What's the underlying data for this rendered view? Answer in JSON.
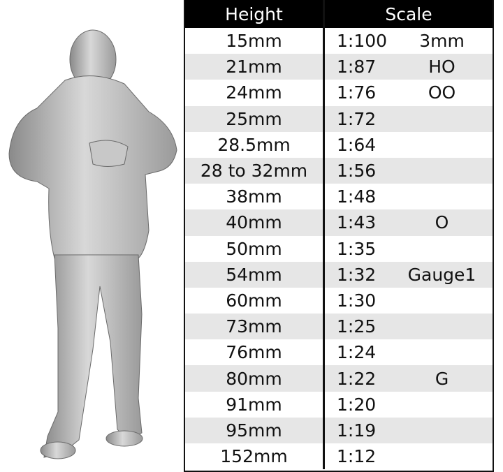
{
  "header": {
    "height_label": "Height",
    "scale_label": "Scale"
  },
  "rows": [
    {
      "height": "15mm",
      "ratio": "1:100",
      "gauge": "3mm"
    },
    {
      "height": "21mm",
      "ratio": "1:87",
      "gauge": "HO"
    },
    {
      "height": "24mm",
      "ratio": "1:76",
      "gauge": "OO"
    },
    {
      "height": "25mm",
      "ratio": "1:72",
      "gauge": ""
    },
    {
      "height": "28.5mm",
      "ratio": "1:64",
      "gauge": ""
    },
    {
      "height": "28 to 32mm",
      "ratio": "1:56",
      "gauge": ""
    },
    {
      "height": "38mm",
      "ratio": "1:48",
      "gauge": ""
    },
    {
      "height": "40mm",
      "ratio": "1:43",
      "gauge": "O"
    },
    {
      "height": "50mm",
      "ratio": "1:35",
      "gauge": ""
    },
    {
      "height": "54mm",
      "ratio": "1:32",
      "gauge": "Gauge1"
    },
    {
      "height": "60mm",
      "ratio": "1:30",
      "gauge": ""
    },
    {
      "height": "73mm",
      "ratio": "1:25",
      "gauge": ""
    },
    {
      "height": "76mm",
      "ratio": "1:24",
      "gauge": ""
    },
    {
      "height": "80mm",
      "ratio": "1:22",
      "gauge": "G"
    },
    {
      "height": "91mm",
      "ratio": "1:20",
      "gauge": ""
    },
    {
      "height": "95mm",
      "ratio": "1:19",
      "gauge": ""
    },
    {
      "height": "152mm",
      "ratio": "1:12",
      "gauge": ""
    }
  ]
}
